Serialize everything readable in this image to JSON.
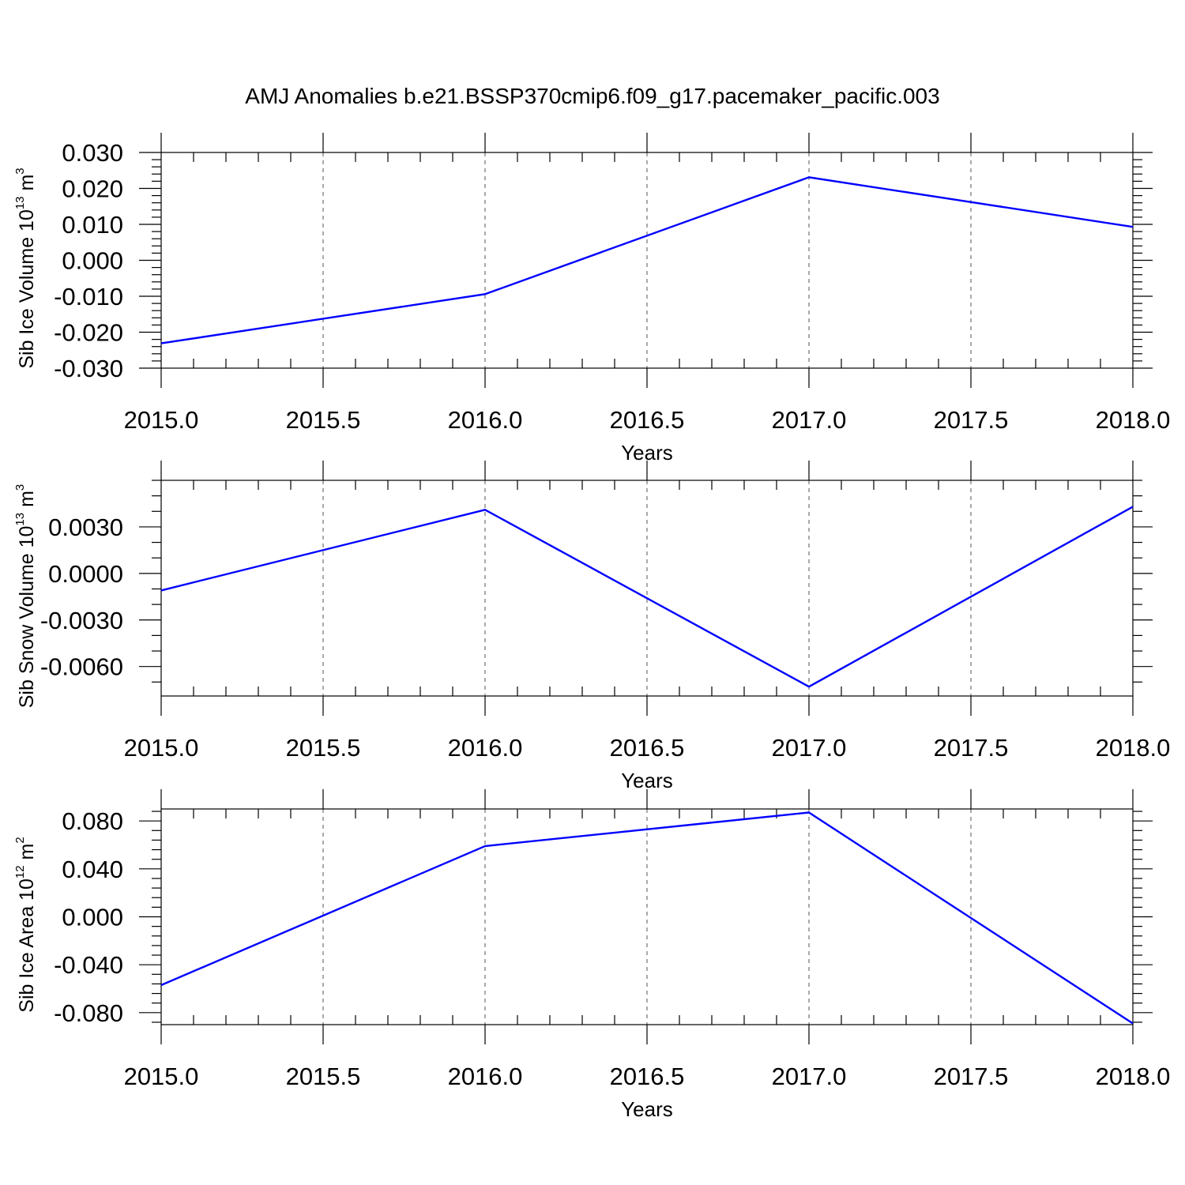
{
  "title": "AMJ Anomalies b.e21.BSSP370cmip6.f09_g17.pacemaker_pacific.003",
  "chart_data": [
    {
      "type": "line",
      "ylabel": "Sib Ice Volume 10",
      "ylabel_exp": "13",
      "ylabel_unit": " m",
      "ylabel_unit_exp": "3",
      "xlabel": "Years",
      "xlim": [
        2015.0,
        2018.0
      ],
      "ylim": [
        -0.03,
        0.03
      ],
      "xticks": [
        2015.0,
        2015.5,
        2016.0,
        2016.5,
        2017.0,
        2017.5,
        2018.0
      ],
      "xtick_labels": [
        "2015.0",
        "2015.5",
        "2016.0",
        "2016.5",
        "2017.0",
        "2017.5",
        "2018.0"
      ],
      "yticks": [
        -0.03,
        -0.02,
        -0.01,
        0.0,
        0.01,
        0.02,
        0.03
      ],
      "ytick_labels": [
        "-0.030",
        "-0.020",
        "-0.010",
        "0.000",
        "0.010",
        "0.020",
        "0.030"
      ],
      "yminor_step": 0.002,
      "grid": "vertical dashed",
      "color": "#0000ff",
      "x": [
        2015,
        2016,
        2017,
        2018
      ],
      "y": [
        -0.0231,
        -0.0094,
        0.0231,
        0.0093
      ]
    },
    {
      "type": "line",
      "ylabel": "Sib Snow Volume 10",
      "ylabel_exp": "13",
      "ylabel_unit": " m",
      "ylabel_unit_exp": "3",
      "xlabel": "Years",
      "xlim": [
        2015.0,
        2018.0
      ],
      "ylim": [
        -0.0079,
        0.006
      ],
      "xticks": [
        2015.0,
        2015.5,
        2016.0,
        2016.5,
        2017.0,
        2017.5,
        2018.0
      ],
      "xtick_labels": [
        "2015.0",
        "2015.5",
        "2016.0",
        "2016.5",
        "2017.0",
        "2017.5",
        "2018.0"
      ],
      "yticks": [
        -0.006,
        -0.003,
        0.0,
        0.003
      ],
      "ytick_labels": [
        "-0.0060",
        "-0.0030",
        "0.0000",
        "0.0030"
      ],
      "yminor_step": 0.001,
      "grid": "vertical dashed",
      "color": "#0000ff",
      "x": [
        2015,
        2016,
        2017,
        2018
      ],
      "y": [
        -0.0011,
        0.0041,
        -0.0073,
        0.0043
      ]
    },
    {
      "type": "line",
      "ylabel": "Sib Ice Area 10",
      "ylabel_exp": "12",
      "ylabel_unit": " m",
      "ylabel_unit_exp": "2",
      "xlabel": "Years",
      "xlim": [
        2015.0,
        2018.0
      ],
      "ylim": [
        -0.09,
        0.09
      ],
      "xticks": [
        2015.0,
        2015.5,
        2016.0,
        2016.5,
        2017.0,
        2017.5,
        2018.0
      ],
      "xtick_labels": [
        "2015.0",
        "2015.5",
        "2016.0",
        "2016.5",
        "2017.0",
        "2017.5",
        "2018.0"
      ],
      "yticks": [
        -0.08,
        -0.04,
        0.0,
        0.04,
        0.08
      ],
      "ytick_labels": [
        "-0.080",
        "-0.040",
        "0.000",
        "0.040",
        "0.080"
      ],
      "yminor_step": 0.008,
      "grid": "vertical dashed",
      "color": "#0000ff",
      "x": [
        2015,
        2016,
        2017,
        2018
      ],
      "y": [
        -0.057,
        0.059,
        0.087,
        -0.089
      ]
    }
  ]
}
